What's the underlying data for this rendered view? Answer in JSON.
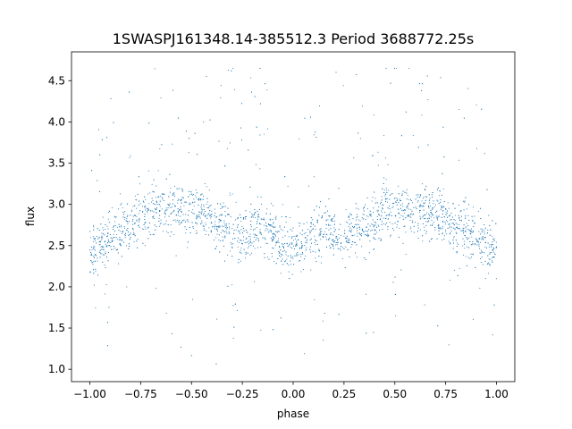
{
  "chart_data": {
    "type": "scatter",
    "title": "1SWASPJ161348.14-385512.3 Period 3688772.25s",
    "xlabel": "phase",
    "ylabel": "flux",
    "xlim": [
      -1.09,
      1.09
    ],
    "ylim": [
      0.85,
      4.85
    ],
    "x_ticks": [
      "−1.00",
      "−0.75",
      "−0.50",
      "−0.25",
      "0.00",
      "0.25",
      "0.50",
      "0.75",
      "1.00"
    ],
    "x_tick_values": [
      -1.0,
      -0.75,
      -0.5,
      -0.25,
      0.0,
      0.25,
      0.5,
      0.75,
      1.0
    ],
    "y_ticks": [
      "1.0",
      "1.5",
      "2.0",
      "2.5",
      "3.0",
      "3.5",
      "4.0",
      "4.5"
    ],
    "y_tick_values": [
      1.0,
      1.5,
      2.0,
      2.5,
      3.0,
      3.5,
      4.0,
      4.5
    ],
    "grid": false,
    "marker_color": "#1f77b4",
    "series": [
      {
        "phase_profile": {
          "phase": [
            0.0,
            0.05,
            0.1,
            0.15,
            0.2,
            0.25,
            0.3,
            0.35,
            0.4,
            0.45,
            0.5,
            0.55,
            0.6,
            0.65,
            0.7,
            0.75,
            0.8,
            0.85,
            0.9,
            0.95,
            1.0
          ],
          "median_flux": [
            2.45,
            2.5,
            2.65,
            2.75,
            2.65,
            2.6,
            2.7,
            2.75,
            2.75,
            2.95,
            2.95,
            2.95,
            2.9,
            2.95,
            2.9,
            2.85,
            2.75,
            2.7,
            2.6,
            2.5,
            2.45
          ]
        },
        "flux_min": 1.05,
        "flux_max": 4.65
      }
    ]
  }
}
